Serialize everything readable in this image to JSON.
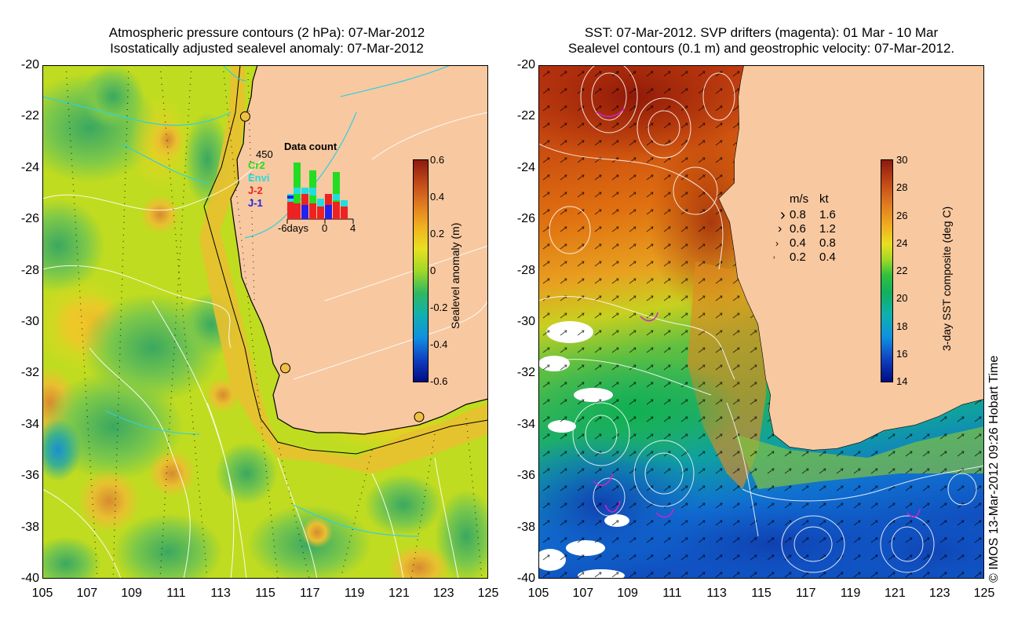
{
  "left_map": {
    "title_line1": "Atmospheric pressure contours (2 hPa): 07-Mar-2012",
    "title_line2": "Isostatically adjusted sealevel anomaly: 07-Mar-2012",
    "lat_ticks": [
      "-20",
      "-22",
      "-24",
      "-26",
      "-28",
      "-30",
      "-32",
      "-34",
      "-36",
      "-38",
      "-40"
    ],
    "lon_ticks": [
      "105",
      "107",
      "109",
      "111",
      "113",
      "115",
      "117",
      "119",
      "121",
      "123",
      "125"
    ],
    "colorbar": {
      "label": "Sealevel anomaly (m)",
      "ticks": [
        "0.6",
        "0.4",
        "0.2",
        "0",
        "-0.2",
        "-0.4",
        "-0.6"
      ]
    },
    "data_count": {
      "title": "Data count",
      "ymax": "450",
      "legend": [
        {
          "name": "Cr2",
          "color": "#22dd22"
        },
        {
          "name": "Envi",
          "color": "#22dddd"
        },
        {
          "name": "J-2",
          "color": "#ee2222"
        },
        {
          "name": "J-1",
          "color": "#2222ee"
        }
      ],
      "x_start": "-6days",
      "x_mid": "0",
      "x_end": "4"
    },
    "tide_gauges": [
      {
        "lon": 114.1,
        "lat": -22.0
      },
      {
        "lon": 115.9,
        "lat": -31.8
      },
      {
        "lon": 121.9,
        "lat": -33.7
      }
    ]
  },
  "right_map": {
    "title_line1": "SST: 07-Mar-2012. SVP drifters (magenta): 01 Mar - 10 Mar",
    "title_line2": "Sealevel contours (0.1 m) and geostrophic velocity: 07-Mar-2012.",
    "lat_ticks": [
      "-20",
      "-22",
      "-24",
      "-26",
      "-28",
      "-30",
      "-32",
      "-34",
      "-36",
      "-38",
      "-40"
    ],
    "lon_ticks": [
      "105",
      "107",
      "109",
      "111",
      "113",
      "115",
      "117",
      "119",
      "121",
      "123",
      "125"
    ],
    "colorbar": {
      "label": "3-day SST composite (deg C)",
      "ticks": [
        "30",
        "28",
        "26",
        "24",
        "22",
        "20",
        "18",
        "16",
        "14"
      ]
    },
    "velocity_legend": {
      "header_ms": "m/s",
      "header_kt": "kt",
      "rows": [
        {
          "ms": "0.8",
          "kt": "1.6"
        },
        {
          "ms": "0.6",
          "kt": "1.2"
        },
        {
          "ms": "0.4",
          "kt": "0.8"
        },
        {
          "ms": "0.2",
          "kt": "0.4"
        }
      ]
    }
  },
  "credit": "© IMOS 13-Mar-2012 09:26 Hobart Time",
  "colors": {
    "land": "#f8c8a0",
    "ocean_default": "#c8e000"
  }
}
